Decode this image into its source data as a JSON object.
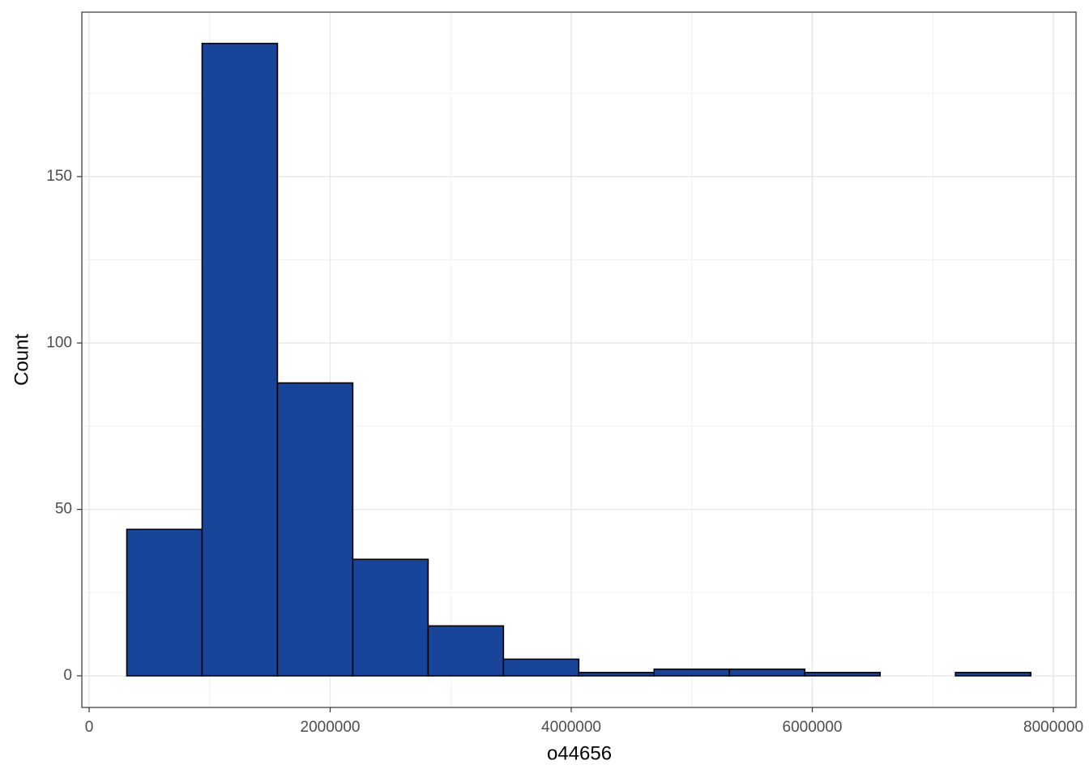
{
  "chart_data": {
    "type": "histogram",
    "x_label": "o44656",
    "y_label": "Count",
    "bins": [
      312500,
      937500,
      1562500,
      2187500,
      2812500,
      3437500,
      4062500,
      4687500,
      5312500,
      5937500,
      6562500,
      7187500,
      7812500
    ],
    "values": [
      44,
      190,
      88,
      35,
      15,
      5,
      1,
      2,
      2,
      1,
      0,
      1
    ],
    "color": "#184499",
    "edge_color": "#000000",
    "xlim": [
      -60500,
      8188000
    ],
    "ylim": [
      -9.5,
      199.4
    ],
    "xticks": [
      0,
      2000000,
      4000000,
      6000000,
      8000000
    ],
    "yticks": [
      0,
      50,
      100,
      150
    ],
    "grid": true
  }
}
